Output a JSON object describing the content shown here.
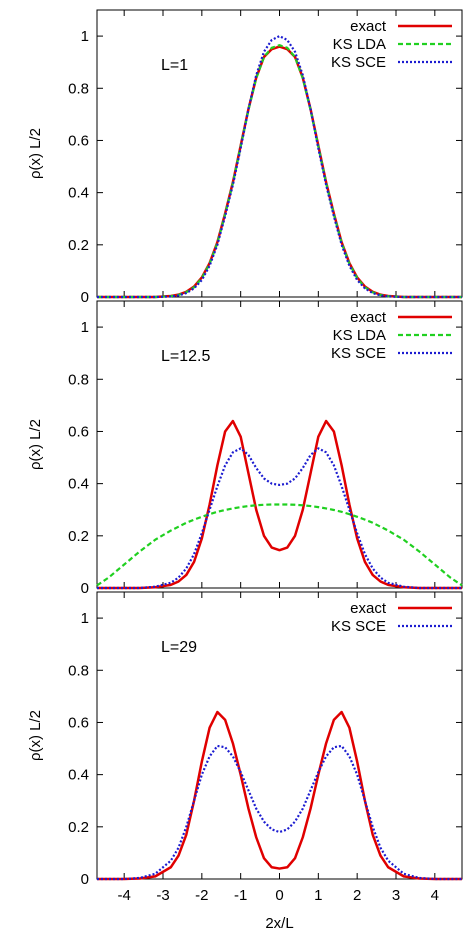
{
  "chart_data": [
    {
      "type": "line",
      "title": "",
      "annotation": "L=1",
      "xlabel": "",
      "ylabel": "ρ(x) L/2",
      "xlim": [
        -4.7,
        4.7
      ],
      "ylim": [
        0,
        1.1
      ],
      "xticks": [
        "-4",
        "-3",
        "-2",
        "-1",
        "0",
        "1",
        "2",
        "3",
        "4"
      ],
      "yticks": [
        "0",
        "0.2",
        "0.4",
        "0.6",
        "0.8",
        "1"
      ],
      "legend_position": "top-right",
      "series": [
        {
          "name": "exact",
          "color": "#e00000",
          "style": "solid",
          "x": [
            -4.7,
            -4.4,
            -4.0,
            -3.6,
            -3.2,
            -2.8,
            -2.6,
            -2.4,
            -2.2,
            -2.0,
            -1.8,
            -1.6,
            -1.4,
            -1.2,
            -1.0,
            -0.8,
            -0.6,
            -0.4,
            -0.2,
            0.0,
            0.2,
            0.4,
            0.6,
            0.8,
            1.0,
            1.2,
            1.4,
            1.6,
            1.8,
            2.0,
            2.2,
            2.4,
            2.6,
            2.8,
            3.2,
            3.6,
            4.0,
            4.4,
            4.7
          ],
          "y": [
            0,
            0,
            0,
            0,
            0,
            0.004,
            0.009,
            0.02,
            0.04,
            0.075,
            0.13,
            0.21,
            0.32,
            0.44,
            0.58,
            0.72,
            0.84,
            0.92,
            0.95,
            0.96,
            0.95,
            0.92,
            0.84,
            0.72,
            0.58,
            0.44,
            0.32,
            0.21,
            0.13,
            0.075,
            0.04,
            0.02,
            0.009,
            0.004,
            0,
            0,
            0,
            0,
            0
          ]
        },
        {
          "name": "KS LDA",
          "color": "#20d020",
          "style": "dashed",
          "x": [
            -4.7,
            -4.4,
            -4.0,
            -3.6,
            -3.2,
            -2.8,
            -2.6,
            -2.4,
            -2.2,
            -2.0,
            -1.8,
            -1.6,
            -1.4,
            -1.2,
            -1.0,
            -0.8,
            -0.6,
            -0.4,
            -0.2,
            0.0,
            0.2,
            0.4,
            0.6,
            0.8,
            1.0,
            1.2,
            1.4,
            1.6,
            1.8,
            2.0,
            2.2,
            2.4,
            2.6,
            2.8,
            3.2,
            3.6,
            4.0,
            4.4,
            4.7
          ],
          "y": [
            0,
            0,
            0,
            0,
            0,
            0.003,
            0.008,
            0.018,
            0.037,
            0.072,
            0.127,
            0.207,
            0.317,
            0.437,
            0.577,
            0.717,
            0.838,
            0.92,
            0.955,
            0.965,
            0.955,
            0.92,
            0.838,
            0.717,
            0.577,
            0.437,
            0.317,
            0.207,
            0.127,
            0.072,
            0.037,
            0.018,
            0.008,
            0.003,
            0,
            0,
            0,
            0,
            0
          ]
        },
        {
          "name": "KS SCE",
          "color": "#1c1cd0",
          "style": "dotted",
          "x": [
            -4.7,
            -4.4,
            -4.0,
            -3.6,
            -3.2,
            -2.8,
            -2.6,
            -2.4,
            -2.2,
            -2.0,
            -1.8,
            -1.6,
            -1.4,
            -1.2,
            -1.0,
            -0.8,
            -0.6,
            -0.4,
            -0.2,
            0.0,
            0.2,
            0.4,
            0.6,
            0.8,
            1.0,
            1.2,
            1.4,
            1.6,
            1.8,
            2.0,
            2.2,
            2.4,
            2.6,
            2.8,
            3.2,
            3.6,
            4.0,
            4.4,
            4.7
          ],
          "y": [
            0,
            0,
            0,
            0,
            0,
            0.002,
            0.006,
            0.015,
            0.033,
            0.065,
            0.12,
            0.2,
            0.31,
            0.43,
            0.57,
            0.72,
            0.85,
            0.94,
            0.985,
            1.0,
            0.985,
            0.94,
            0.85,
            0.72,
            0.57,
            0.43,
            0.31,
            0.2,
            0.12,
            0.065,
            0.033,
            0.015,
            0.006,
            0.002,
            0,
            0,
            0,
            0,
            0
          ]
        }
      ]
    },
    {
      "type": "line",
      "title": "",
      "annotation": "L=12.5",
      "xlabel": "",
      "ylabel": "ρ(x) L/2",
      "xlim": [
        -4.7,
        4.7
      ],
      "ylim": [
        0,
        1.1
      ],
      "xticks": [
        "-4",
        "-3",
        "-2",
        "-1",
        "0",
        "1",
        "2",
        "3",
        "4"
      ],
      "yticks": [
        "0",
        "0.2",
        "0.4",
        "0.6",
        "0.8",
        "1"
      ],
      "legend_position": "top-right",
      "series": [
        {
          "name": "exact",
          "color": "#e00000",
          "style": "solid",
          "x": [
            -4.7,
            -4.4,
            -4.0,
            -3.6,
            -3.2,
            -2.8,
            -2.6,
            -2.4,
            -2.2,
            -2.0,
            -1.8,
            -1.6,
            -1.4,
            -1.2,
            -1.0,
            -0.8,
            -0.6,
            -0.4,
            -0.2,
            0.0,
            0.2,
            0.4,
            0.6,
            0.8,
            1.0,
            1.2,
            1.4,
            1.6,
            1.8,
            2.0,
            2.2,
            2.4,
            2.6,
            2.8,
            3.2,
            3.6,
            4.0,
            4.4,
            4.7
          ],
          "y": [
            0,
            0,
            0,
            0,
            0.003,
            0.012,
            0.025,
            0.05,
            0.1,
            0.19,
            0.32,
            0.47,
            0.6,
            0.64,
            0.58,
            0.44,
            0.3,
            0.2,
            0.155,
            0.145,
            0.155,
            0.2,
            0.3,
            0.44,
            0.58,
            0.64,
            0.6,
            0.47,
            0.32,
            0.19,
            0.1,
            0.05,
            0.025,
            0.012,
            0.003,
            0,
            0,
            0,
            0
          ]
        },
        {
          "name": "KS LDA",
          "color": "#20d020",
          "style": "dashed",
          "x": [
            -4.7,
            -4.4,
            -4.0,
            -3.6,
            -3.2,
            -2.8,
            -2.6,
            -2.4,
            -2.2,
            -2.0,
            -1.8,
            -1.6,
            -1.4,
            -1.2,
            -1.0,
            -0.8,
            -0.6,
            -0.4,
            -0.2,
            0.0,
            0.2,
            0.4,
            0.6,
            0.8,
            1.0,
            1.2,
            1.4,
            1.6,
            1.8,
            2.0,
            2.2,
            2.4,
            2.6,
            2.8,
            3.2,
            3.6,
            4.0,
            4.4,
            4.7
          ],
          "y": [
            0.01,
            0.04,
            0.09,
            0.14,
            0.185,
            0.22,
            0.235,
            0.25,
            0.262,
            0.273,
            0.283,
            0.292,
            0.299,
            0.305,
            0.31,
            0.314,
            0.317,
            0.319,
            0.32,
            0.32,
            0.32,
            0.319,
            0.317,
            0.314,
            0.31,
            0.305,
            0.299,
            0.292,
            0.283,
            0.273,
            0.262,
            0.25,
            0.235,
            0.22,
            0.185,
            0.14,
            0.09,
            0.04,
            0.01
          ]
        },
        {
          "name": "KS SCE",
          "color": "#1c1cd0",
          "style": "dotted",
          "x": [
            -4.7,
            -4.4,
            -4.0,
            -3.6,
            -3.2,
            -2.8,
            -2.6,
            -2.4,
            -2.2,
            -2.0,
            -1.8,
            -1.6,
            -1.4,
            -1.2,
            -1.0,
            -0.8,
            -0.6,
            -0.4,
            -0.2,
            0.0,
            0.2,
            0.4,
            0.6,
            0.8,
            1.0,
            1.2,
            1.4,
            1.6,
            1.8,
            2.0,
            2.2,
            2.4,
            2.6,
            2.8,
            3.2,
            3.6,
            4.0,
            4.4,
            4.7
          ],
          "y": [
            0,
            0,
            0,
            0,
            0.005,
            0.02,
            0.04,
            0.075,
            0.13,
            0.21,
            0.3,
            0.39,
            0.47,
            0.52,
            0.535,
            0.51,
            0.46,
            0.42,
            0.4,
            0.395,
            0.4,
            0.42,
            0.46,
            0.51,
            0.535,
            0.52,
            0.47,
            0.39,
            0.3,
            0.21,
            0.13,
            0.075,
            0.04,
            0.02,
            0.005,
            0,
            0,
            0,
            0
          ]
        }
      ]
    },
    {
      "type": "line",
      "title": "",
      "annotation": "L=29",
      "xlabel": "2x/L",
      "ylabel": "ρ(x) L/2",
      "xlim": [
        -4.7,
        4.7
      ],
      "ylim": [
        0,
        1.1
      ],
      "xticks": [
        "-4",
        "-3",
        "-2",
        "-1",
        "0",
        "1",
        "2",
        "3",
        "4"
      ],
      "yticks": [
        "0",
        "0.2",
        "0.4",
        "0.6",
        "0.8",
        "1"
      ],
      "legend_position": "top-right",
      "series": [
        {
          "name": "exact",
          "color": "#e00000",
          "style": "solid",
          "x": [
            -4.7,
            -4.4,
            -4.0,
            -3.6,
            -3.2,
            -2.8,
            -2.6,
            -2.4,
            -2.2,
            -2.0,
            -1.8,
            -1.6,
            -1.4,
            -1.2,
            -1.0,
            -0.8,
            -0.6,
            -0.4,
            -0.2,
            0.0,
            0.2,
            0.4,
            0.6,
            0.8,
            1.0,
            1.2,
            1.4,
            1.6,
            1.8,
            2.0,
            2.2,
            2.4,
            2.6,
            2.8,
            3.2,
            3.6,
            4.0,
            4.4,
            4.7
          ],
          "y": [
            0,
            0,
            0,
            0.002,
            0.01,
            0.045,
            0.09,
            0.17,
            0.3,
            0.45,
            0.58,
            0.64,
            0.61,
            0.52,
            0.4,
            0.27,
            0.16,
            0.08,
            0.045,
            0.04,
            0.045,
            0.08,
            0.16,
            0.27,
            0.4,
            0.52,
            0.61,
            0.64,
            0.58,
            0.45,
            0.3,
            0.17,
            0.09,
            0.045,
            0.01,
            0.002,
            0,
            0,
            0
          ]
        },
        {
          "name": "KS SCE",
          "color": "#1c1cd0",
          "style": "dotted",
          "x": [
            -4.7,
            -4.4,
            -4.0,
            -3.6,
            -3.2,
            -2.8,
            -2.6,
            -2.4,
            -2.2,
            -2.0,
            -1.8,
            -1.6,
            -1.4,
            -1.2,
            -1.0,
            -0.8,
            -0.6,
            -0.4,
            -0.2,
            0.0,
            0.2,
            0.4,
            0.6,
            0.8,
            1.0,
            1.2,
            1.4,
            1.6,
            1.8,
            2.0,
            2.2,
            2.4,
            2.6,
            2.8,
            3.2,
            3.6,
            4.0,
            4.4,
            4.7
          ],
          "y": [
            0,
            0,
            0,
            0.004,
            0.02,
            0.07,
            0.12,
            0.2,
            0.3,
            0.4,
            0.47,
            0.51,
            0.505,
            0.47,
            0.41,
            0.34,
            0.27,
            0.22,
            0.19,
            0.18,
            0.19,
            0.22,
            0.27,
            0.34,
            0.41,
            0.47,
            0.505,
            0.51,
            0.47,
            0.4,
            0.3,
            0.2,
            0.12,
            0.07,
            0.02,
            0.004,
            0,
            0,
            0
          ]
        }
      ]
    }
  ]
}
